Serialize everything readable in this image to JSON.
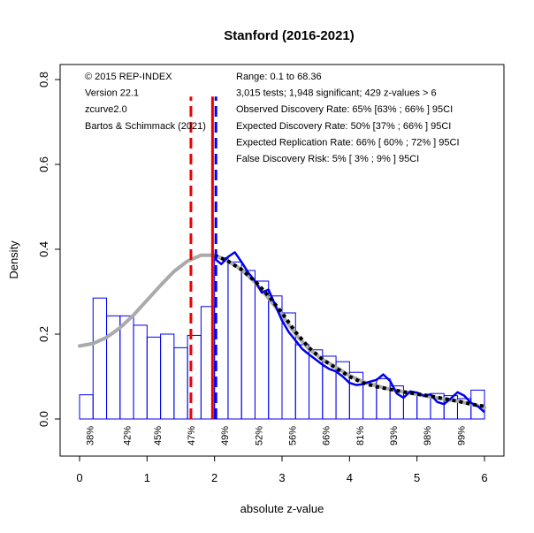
{
  "chart_data": {
    "type": "bar",
    "title": "Stanford (2016-2021)",
    "xlabel": "absolute z-value",
    "ylabel": "Density",
    "xlim": [
      0,
      6
    ],
    "ylim": [
      0,
      0.8
    ],
    "x_ticks": [
      "0",
      "1",
      "2",
      "3",
      "4",
      "5",
      "6"
    ],
    "y_ticks": [
      "0.0",
      "0.2",
      "0.4",
      "0.6",
      "0.8"
    ],
    "bin_width": 0.2,
    "histogram": [
      0.057,
      0.285,
      0.243,
      0.243,
      0.221,
      0.193,
      0.2,
      0.168,
      0.197,
      0.265,
      0.38,
      0.37,
      0.35,
      0.325,
      0.29,
      0.25,
      0.175,
      0.163,
      0.148,
      0.135,
      0.11,
      0.083,
      0.095,
      0.078,
      0.06,
      0.055,
      0.06,
      0.055,
      0.048,
      0.068
    ],
    "annotations_left": [
      "© 2015 REP-INDEX",
      "Version 22.1",
      "zcurve2.0",
      "Bartos & Schimmack (2021)"
    ],
    "annotations_right": [
      "Range: 0.1 to 68.36",
      "3,015 tests; 1,948 significant; 429 z-values > 6",
      "Observed Discovery Rate: 65% [63% ; 66% ] 95CI",
      "Expected Discovery Rate: 50% [37% ; 66% ] 95CI",
      "Expected Replication Rate: 66% [ 60% ; 72% ] 95CI",
      "False Discovery Risk: 5% [ 3% ; 9% ] 95CI"
    ],
    "power_labels": [
      {
        "x": 0.15,
        "text": "38%"
      },
      {
        "x": 0.7,
        "text": "42%"
      },
      {
        "x": 1.15,
        "text": "45%"
      },
      {
        "x": 1.65,
        "text": "47%"
      },
      {
        "x": 2.15,
        "text": "49%"
      },
      {
        "x": 2.65,
        "text": "52%"
      },
      {
        "x": 3.15,
        "text": "56%"
      },
      {
        "x": 3.65,
        "text": "66%"
      },
      {
        "x": 4.15,
        "text": "81%"
      },
      {
        "x": 4.65,
        "text": "93%"
      },
      {
        "x": 5.15,
        "text": "98%"
      },
      {
        "x": 5.65,
        "text": "99%"
      }
    ],
    "vertical_lines": [
      {
        "x": 1.65,
        "y_top": 0.76,
        "style": "dashed",
        "color": "#ee0000"
      },
      {
        "x": 1.97,
        "y_top": 0.76,
        "style": "solid",
        "color": "#ee0000"
      },
      {
        "x": 2.02,
        "y_top": 0.76,
        "style": "dashed",
        "color": "#0000ee"
      }
    ],
    "density_curve": [
      [
        2.0,
        0.378
      ],
      [
        2.1,
        0.365
      ],
      [
        2.2,
        0.382
      ],
      [
        2.3,
        0.393
      ],
      [
        2.4,
        0.37
      ],
      [
        2.5,
        0.345
      ],
      [
        2.6,
        0.325
      ],
      [
        2.7,
        0.298
      ],
      [
        2.8,
        0.305
      ],
      [
        2.9,
        0.268
      ],
      [
        3.0,
        0.232
      ],
      [
        3.1,
        0.205
      ],
      [
        3.2,
        0.185
      ],
      [
        3.3,
        0.165
      ],
      [
        3.4,
        0.152
      ],
      [
        3.5,
        0.14
      ],
      [
        3.6,
        0.128
      ],
      [
        3.7,
        0.118
      ],
      [
        3.8,
        0.112
      ],
      [
        3.9,
        0.1
      ],
      [
        4.0,
        0.085
      ],
      [
        4.1,
        0.08
      ],
      [
        4.2,
        0.082
      ],
      [
        4.3,
        0.088
      ],
      [
        4.4,
        0.092
      ],
      [
        4.5,
        0.105
      ],
      [
        4.6,
        0.09
      ],
      [
        4.7,
        0.06
      ],
      [
        4.8,
        0.05
      ],
      [
        4.9,
        0.065
      ],
      [
        5.0,
        0.062
      ],
      [
        5.1,
        0.055
      ],
      [
        5.2,
        0.058
      ],
      [
        5.3,
        0.04
      ],
      [
        5.4,
        0.035
      ],
      [
        5.5,
        0.048
      ],
      [
        5.6,
        0.063
      ],
      [
        5.7,
        0.055
      ],
      [
        5.8,
        0.038
      ],
      [
        5.9,
        0.03
      ],
      [
        6.0,
        0.016
      ]
    ],
    "fit_curve": [
      [
        2.0,
        0.386
      ],
      [
        2.2,
        0.372
      ],
      [
        2.4,
        0.352
      ],
      [
        2.6,
        0.325
      ],
      [
        2.8,
        0.29
      ],
      [
        3.0,
        0.25
      ],
      [
        3.2,
        0.205
      ],
      [
        3.4,
        0.168
      ],
      [
        3.6,
        0.14
      ],
      [
        3.8,
        0.12
      ],
      [
        4.0,
        0.1
      ],
      [
        4.2,
        0.085
      ],
      [
        4.4,
        0.076
      ],
      [
        4.6,
        0.07
      ],
      [
        4.8,
        0.064
      ],
      [
        5.0,
        0.059
      ],
      [
        5.2,
        0.054
      ],
      [
        5.4,
        0.048
      ],
      [
        5.6,
        0.042
      ],
      [
        5.8,
        0.035
      ],
      [
        6.0,
        0.03
      ]
    ],
    "grey_curve": [
      [
        0.0,
        0.172
      ],
      [
        0.2,
        0.178
      ],
      [
        0.4,
        0.192
      ],
      [
        0.6,
        0.215
      ],
      [
        0.8,
        0.245
      ],
      [
        1.0,
        0.28
      ],
      [
        1.2,
        0.315
      ],
      [
        1.4,
        0.348
      ],
      [
        1.6,
        0.372
      ],
      [
        1.8,
        0.386
      ],
      [
        2.0,
        0.386
      ],
      [
        2.2,
        0.372
      ],
      [
        2.4,
        0.352
      ],
      [
        2.6,
        0.322
      ],
      [
        2.8,
        0.285
      ],
      [
        3.0,
        0.245
      ],
      [
        3.2,
        0.2
      ],
      [
        3.4,
        0.165
      ],
      [
        3.6,
        0.14
      ],
      [
        3.8,
        0.122
      ],
      [
        4.0,
        0.102
      ],
      [
        4.2,
        0.088
      ],
      [
        4.4,
        0.078
      ],
      [
        4.6,
        0.07
      ],
      [
        4.8,
        0.064
      ],
      [
        5.0,
        0.058
      ],
      [
        5.2,
        0.052
      ],
      [
        5.4,
        0.047
      ],
      [
        5.6,
        0.042
      ],
      [
        5.8,
        0.035
      ],
      [
        6.0,
        0.027
      ]
    ],
    "colors": {
      "bars": "#0000ee",
      "density": "#0000ee",
      "fit": "#000000",
      "grey": "#aaaaaa",
      "red": "#ee0000"
    }
  }
}
